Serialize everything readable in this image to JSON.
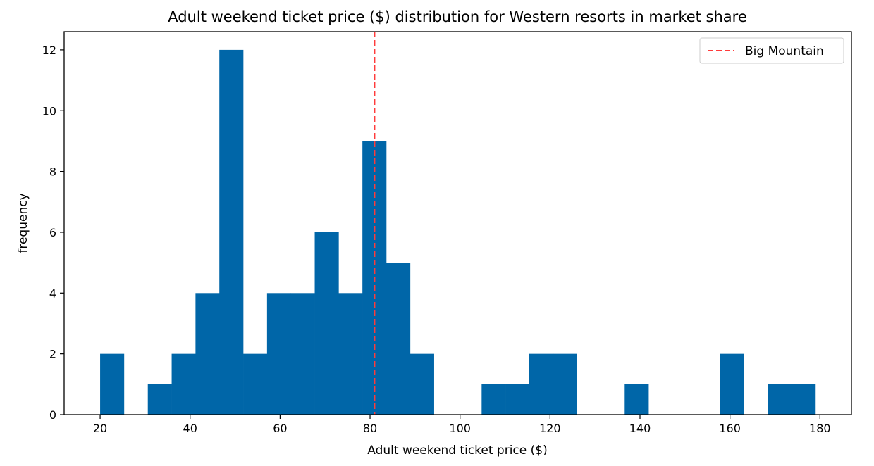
{
  "chart_data": {
    "type": "bar",
    "title": "Adult weekend ticket price ($) distribution for Western resorts in market share",
    "xlabel": "Adult weekend ticket price ($)",
    "ylabel": "frequency",
    "xlim": [
      12.0,
      187.0
    ],
    "ylim": [
      0,
      12.6
    ],
    "xticks": [
      20,
      40,
      60,
      80,
      100,
      120,
      140,
      160,
      180
    ],
    "yticks": [
      0,
      2,
      4,
      6,
      8,
      10,
      12
    ],
    "bin_edges": [
      20.0,
      25.3,
      30.6,
      35.9,
      41.2,
      46.5,
      51.8,
      57.1,
      62.4,
      67.7,
      73.0,
      78.3,
      83.6,
      88.9,
      94.2,
      99.5,
      104.8,
      110.1,
      115.4,
      120.7,
      126.0,
      131.3,
      136.6,
      141.9,
      147.2,
      152.5,
      157.8,
      163.1,
      168.4,
      173.7,
      179.0
    ],
    "values": [
      2,
      0,
      1,
      2,
      4,
      12,
      2,
      4,
      4,
      6,
      4,
      9,
      5,
      2,
      0,
      0,
      1,
      1,
      2,
      2,
      0,
      0,
      1,
      0,
      0,
      0,
      2,
      0,
      1,
      1
    ],
    "bar_color": "#0066a8",
    "reference_line": {
      "name": "Big Mountain",
      "x": 81,
      "color": "#ff3b3b",
      "style": "dashed"
    },
    "legend_position": "top-right",
    "grid": false
  }
}
